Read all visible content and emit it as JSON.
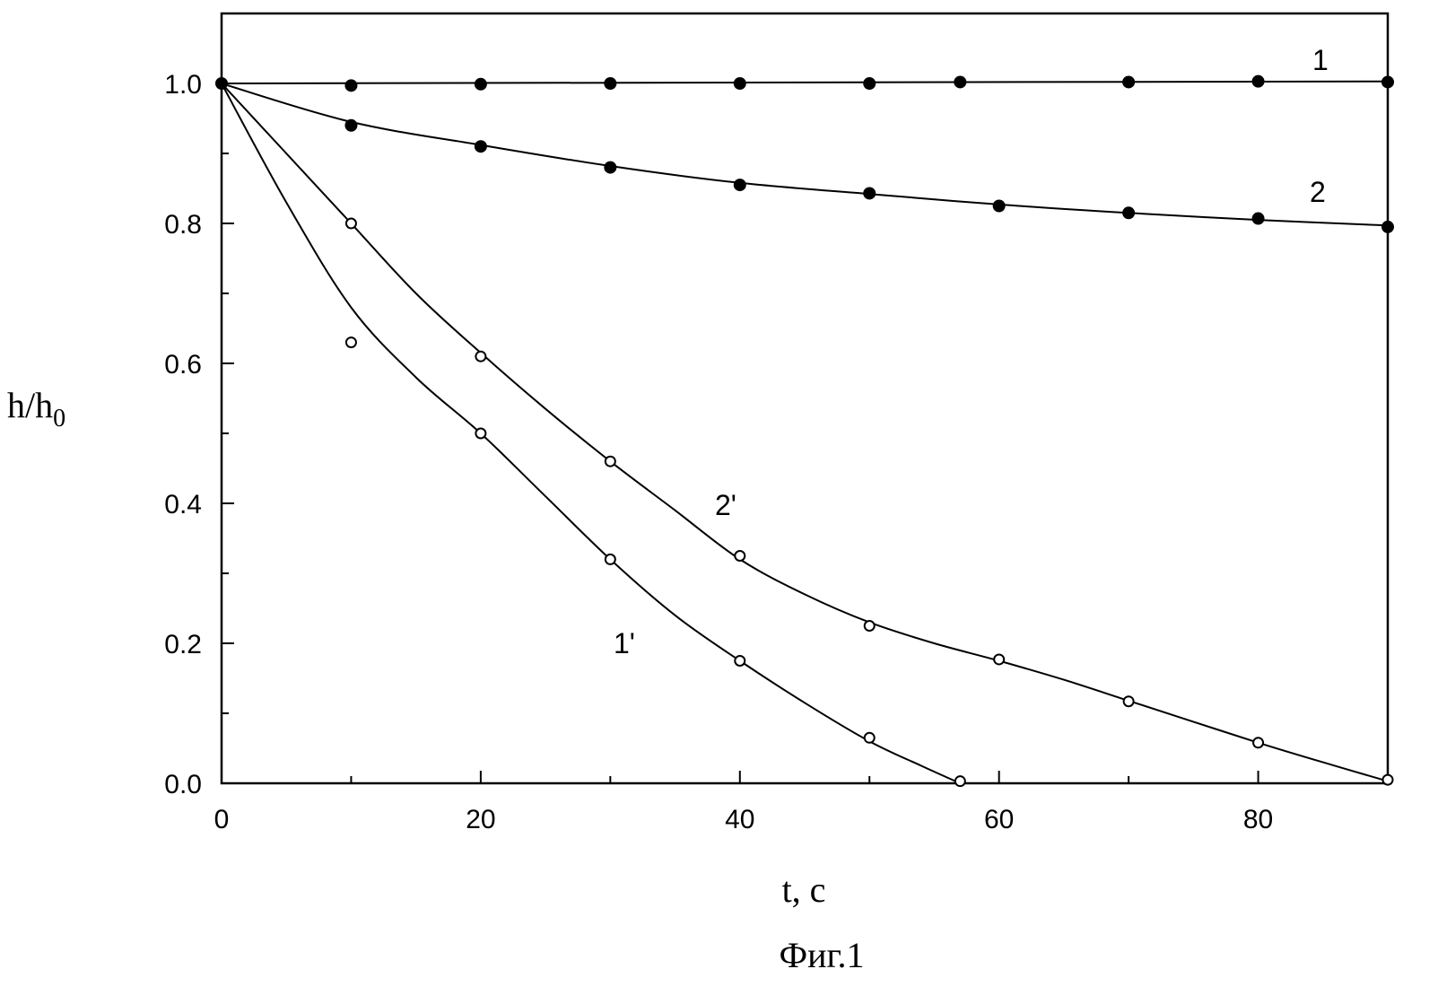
{
  "chart_data": {
    "type": "scatter",
    "title": "",
    "xlabel": "t, c",
    "ylabel": "h/h",
    "ylabel_subscript": "0",
    "caption": "Фиг.1",
    "xlim": [
      0,
      90
    ],
    "ylim": [
      0,
      1.1
    ],
    "x_ticks": [
      0,
      20,
      40,
      60,
      80
    ],
    "x_tick_labels": [
      "0",
      "20",
      "40",
      "60",
      "80"
    ],
    "y_ticks": [
      0.0,
      0.2,
      0.4,
      0.6,
      0.8,
      1.0
    ],
    "y_tick_labels": [
      "0.0",
      "0.2",
      "0.4",
      "0.6",
      "0.8",
      "1.0"
    ],
    "grid": false,
    "series": [
      {
        "name": "1",
        "marker": "filled-circle",
        "points": [
          [
            0,
            1.0
          ],
          [
            10,
            0.997
          ],
          [
            20,
            0.999
          ],
          [
            30,
            1.0
          ],
          [
            40,
            1.0
          ],
          [
            50,
            1.0
          ],
          [
            57,
            1.002
          ],
          [
            70,
            1.002
          ],
          [
            80,
            1.003
          ],
          [
            90,
            1.002
          ]
        ],
        "curve": [
          [
            0,
            1.0
          ],
          [
            90,
            1.003
          ]
        ]
      },
      {
        "name": "2",
        "marker": "filled-circle",
        "points": [
          [
            10,
            0.94
          ],
          [
            20,
            0.91
          ],
          [
            30,
            0.88
          ],
          [
            40,
            0.855
          ],
          [
            50,
            0.843
          ],
          [
            60,
            0.825
          ],
          [
            70,
            0.815
          ],
          [
            80,
            0.807
          ],
          [
            90,
            0.795
          ]
        ],
        "curve": [
          [
            0,
            1.0
          ],
          [
            10,
            0.945
          ],
          [
            20,
            0.912
          ],
          [
            30,
            0.882
          ],
          [
            40,
            0.858
          ],
          [
            50,
            0.842
          ],
          [
            60,
            0.827
          ],
          [
            70,
            0.815
          ],
          [
            80,
            0.805
          ],
          [
            90,
            0.797
          ]
        ]
      },
      {
        "name": "1'",
        "marker": "open-circle",
        "points": [
          [
            10,
            0.63
          ],
          [
            20,
            0.5
          ],
          [
            30,
            0.32
          ],
          [
            40,
            0.175
          ],
          [
            50,
            0.065
          ],
          [
            57,
            0.003
          ]
        ],
        "curve": [
          [
            0,
            1.0
          ],
          [
            5,
            0.83
          ],
          [
            10,
            0.68
          ],
          [
            15,
            0.58
          ],
          [
            20,
            0.5
          ],
          [
            25,
            0.41
          ],
          [
            30,
            0.32
          ],
          [
            35,
            0.24
          ],
          [
            40,
            0.175
          ],
          [
            45,
            0.115
          ],
          [
            50,
            0.06
          ],
          [
            54,
            0.025
          ],
          [
            57,
            0.0
          ]
        ]
      },
      {
        "name": "2'",
        "marker": "open-circle",
        "points": [
          [
            10,
            0.8
          ],
          [
            20,
            0.61
          ],
          [
            30,
            0.46
          ],
          [
            40,
            0.325
          ],
          [
            50,
            0.225
          ],
          [
            60,
            0.177
          ],
          [
            70,
            0.117
          ],
          [
            80,
            0.058
          ],
          [
            90,
            0.005
          ]
        ],
        "curve": [
          [
            0,
            1.0
          ],
          [
            5,
            0.9
          ],
          [
            10,
            0.8
          ],
          [
            15,
            0.7
          ],
          [
            20,
            0.615
          ],
          [
            25,
            0.535
          ],
          [
            30,
            0.46
          ],
          [
            35,
            0.39
          ],
          [
            40,
            0.32
          ],
          [
            45,
            0.27
          ],
          [
            50,
            0.23
          ],
          [
            55,
            0.2
          ],
          [
            60,
            0.175
          ],
          [
            65,
            0.148
          ],
          [
            70,
            0.118
          ],
          [
            75,
            0.088
          ],
          [
            80,
            0.058
          ],
          [
            85,
            0.03
          ],
          [
            90,
            0.003
          ]
        ]
      }
    ]
  }
}
